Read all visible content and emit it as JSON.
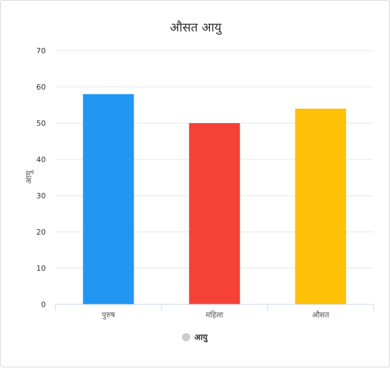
{
  "chart_data": {
    "type": "bar",
    "title": "औसत आयु",
    "xlabel": "",
    "ylabel": "आयु",
    "categories": [
      "पुरुष",
      "महिला",
      "औसत"
    ],
    "series": [
      {
        "name": "आयु",
        "values": [
          58,
          50,
          54
        ]
      }
    ],
    "bar_colors": [
      "#2196f3",
      "#f44336",
      "#ffc107"
    ],
    "legend_marker_color": "#cccccc",
    "ylim": [
      0,
      70
    ],
    "yticks": [
      0,
      10,
      20,
      30,
      40,
      50,
      60,
      70
    ],
    "grid": true,
    "legend_position": "bottom"
  }
}
